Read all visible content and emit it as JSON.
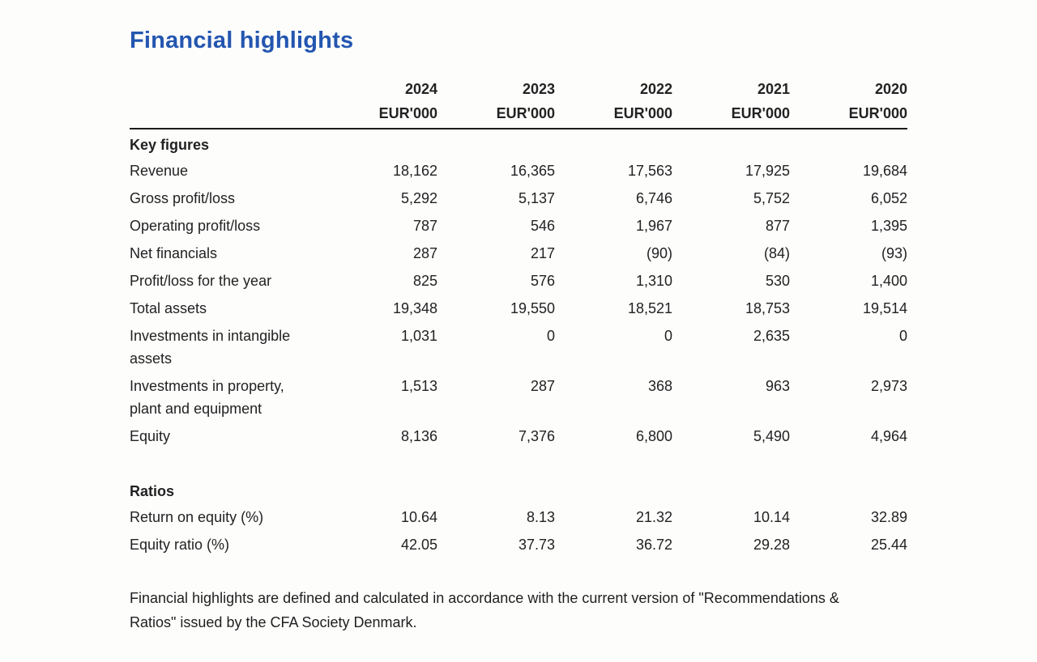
{
  "page": {
    "title": "Financial highlights",
    "title_color": "#2456b0"
  },
  "table": {
    "year_headers": [
      "2024",
      "2023",
      "2022",
      "2021",
      "2020"
    ],
    "unit_label": "EUR'000",
    "sections": [
      {
        "header": "Key figures",
        "rows": [
          {
            "label": "Revenue",
            "values": [
              "18,162",
              "16,365",
              "17,563",
              "17,925",
              "19,684"
            ]
          },
          {
            "label": "Gross profit/loss",
            "values": [
              "5,292",
              "5,137",
              "6,746",
              "5,752",
              "6,052"
            ]
          },
          {
            "label": "Operating profit/loss",
            "values": [
              "787",
              "546",
              "1,967",
              "877",
              "1,395"
            ]
          },
          {
            "label": "Net financials",
            "values": [
              "287",
              "217",
              "(90)",
              "(84)",
              "(93)"
            ]
          },
          {
            "label": "Profit/loss for the year",
            "values": [
              "825",
              "576",
              "1,310",
              "530",
              "1,400"
            ]
          },
          {
            "label": "Total assets",
            "values": [
              "19,348",
              "19,550",
              "18,521",
              "18,753",
              "19,514"
            ]
          },
          {
            "label": "Investments in intangible assets",
            "values": [
              "1,031",
              "0",
              "0",
              "2,635",
              "0"
            ]
          },
          {
            "label": "Investments in property, plant and equipment",
            "values": [
              "1,513",
              "287",
              "368",
              "963",
              "2,973"
            ]
          },
          {
            "label": "Equity",
            "values": [
              "8,136",
              "7,376",
              "6,800",
              "5,490",
              "4,964"
            ]
          }
        ]
      },
      {
        "header": "Ratios",
        "rows": [
          {
            "label": "Return on equity (%)",
            "values": [
              "10.64",
              "8.13",
              "21.32",
              "10.14",
              "32.89"
            ]
          },
          {
            "label": "Equity ratio (%)",
            "values": [
              "42.05",
              "37.73",
              "36.72",
              "29.28",
              "25.44"
            ]
          }
        ]
      }
    ]
  },
  "footnote": "Financial highlights are defined and calculated in accordance with the current version of \"Recommendations & Ratios\" issued by the CFA Society Denmark."
}
